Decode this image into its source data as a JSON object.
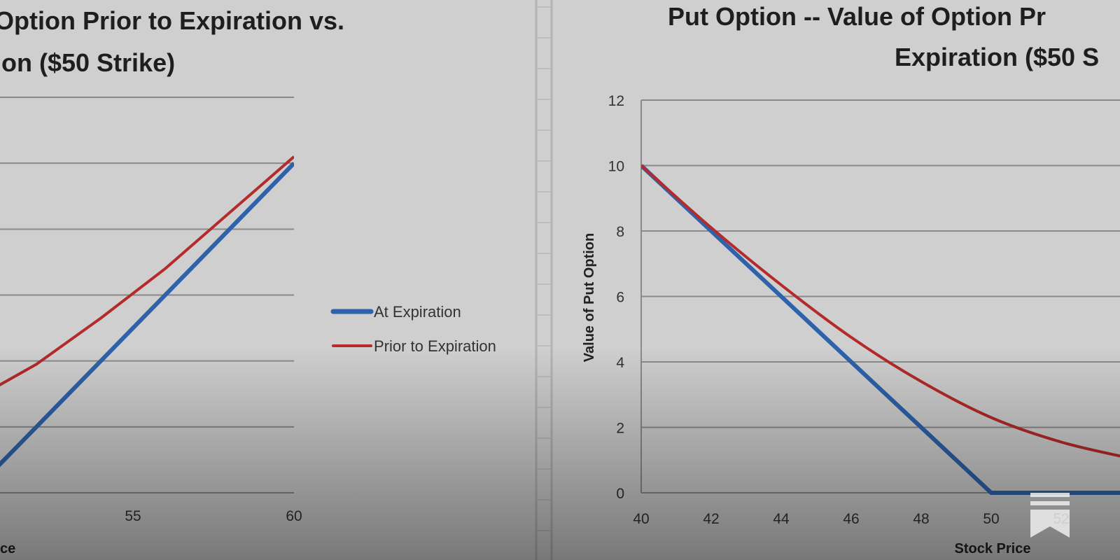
{
  "colors": {
    "at_expiration": "#2e62aa",
    "prior_to_expiration": "#b52a2a",
    "background": "#cfcfcf",
    "gridline": "#8a8a8a"
  },
  "bookmark_icon": "bookmark-icon",
  "chart_data": [
    {
      "type": "line",
      "title_lines": [
        "Option Prior to Expiration vs.",
        "ion ($50 Strike)"
      ],
      "xlabel": "ce",
      "ylabel": "",
      "x_ticks": [
        "55",
        "60"
      ],
      "xlim": [
        45,
        60
      ],
      "ylim": [
        0,
        12
      ],
      "grid": true,
      "legend_position": "right",
      "series": [
        {
          "name": "At Expiration",
          "color_key": "at_expiration",
          "x": [
            45,
            50,
            60
          ],
          "y": [
            0,
            0,
            10
          ]
        },
        {
          "name": "Prior to Expiration",
          "color_key": "prior_to_expiration",
          "x": [
            50,
            52,
            54,
            56,
            58,
            60
          ],
          "y": [
            2.8,
            3.9,
            5.3,
            6.8,
            8.5,
            10.2
          ]
        }
      ]
    },
    {
      "type": "line",
      "title_lines": [
        "Put Option -- Value of Option Pr",
        "Expiration ($50 S"
      ],
      "xlabel": "Stock Price",
      "ylabel": "Value of Put Option",
      "x_ticks": [
        "40",
        "42",
        "44",
        "46",
        "48",
        "50",
        "52"
      ],
      "y_ticks": [
        "0",
        "2",
        "4",
        "6",
        "8",
        "10",
        "12"
      ],
      "xlim": [
        40,
        53.6
      ],
      "ylim": [
        0,
        12
      ],
      "grid": true,
      "legend_position": "right",
      "series": [
        {
          "name": "At Expiration",
          "color_key": "at_expiration",
          "x": [
            40,
            50,
            54
          ],
          "y": [
            10,
            0,
            0
          ]
        },
        {
          "name": "Prior to Expiration",
          "color_key": "prior_to_expiration",
          "x": [
            40,
            42,
            44,
            46,
            48,
            50,
            52,
            54
          ],
          "y": [
            10,
            8.1,
            6.35,
            4.75,
            3.4,
            2.3,
            1.55,
            1.05
          ]
        }
      ]
    }
  ]
}
